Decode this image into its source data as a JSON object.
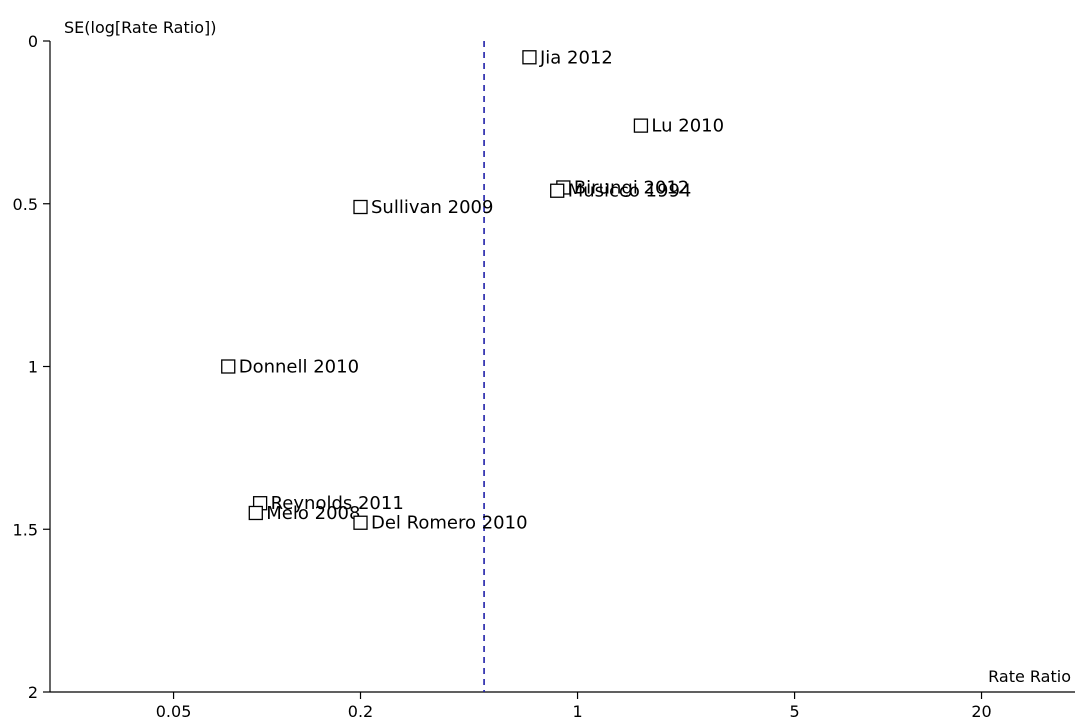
{
  "chart_data": {
    "type": "scatter",
    "xlabel": "Rate Ratio",
    "ylabel": "SE(log[Rate Ratio])",
    "x_scale": "log",
    "xlim": [
      0.02,
      40
    ],
    "ylim": [
      0,
      2
    ],
    "y_reversed": true,
    "x_ticks": [
      0.05,
      0.2,
      1,
      5,
      20
    ],
    "x_tick_labels": [
      "0.05",
      "0.2",
      "1",
      "5",
      "20"
    ],
    "y_ticks": [
      0,
      0.5,
      1,
      1.5,
      2
    ],
    "y_tick_labels": [
      "0",
      "0.5",
      "1",
      "1.5",
      "2"
    ],
    "reference_line": {
      "x": 0.5,
      "style": "dashed",
      "color": "#1f1fa8"
    },
    "grid": false,
    "points": [
      {
        "label": "Jia 2012",
        "x": 0.7,
        "y": 0.05
      },
      {
        "label": "Lu 2010",
        "x": 1.6,
        "y": 0.26
      },
      {
        "label": "Birungi 2012",
        "x": 0.9,
        "y": 0.45
      },
      {
        "label": "Musicco 1994",
        "x": 0.86,
        "y": 0.46
      },
      {
        "label": "Sullivan 2009",
        "x": 0.2,
        "y": 0.51
      },
      {
        "label": "Donnell 2010",
        "x": 0.075,
        "y": 1.0
      },
      {
        "label": "Reynolds 2011",
        "x": 0.095,
        "y": 1.42
      },
      {
        "label": "Melo 2008",
        "x": 0.092,
        "y": 1.45
      },
      {
        "label": "Del Romero 2010",
        "x": 0.2,
        "y": 1.48
      }
    ],
    "colors": {
      "axis": "#000000",
      "marker_stroke": "#000000",
      "reference_line": "#1f1fa8"
    }
  }
}
